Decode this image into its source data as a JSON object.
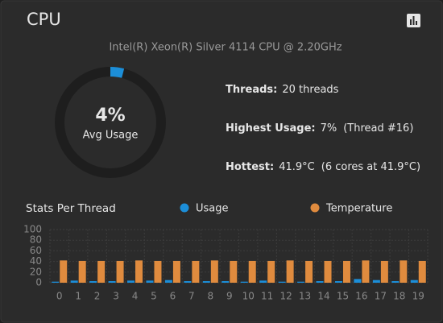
{
  "header": {
    "title": "CPU"
  },
  "model": "Intel(R) Xeon(R) Silver 4114 CPU @ 2.20GHz",
  "gauge": {
    "value": 4,
    "label": "4%",
    "caption": "Avg Usage"
  },
  "stats": {
    "threads": {
      "label": "Threads:",
      "value": "20 threads"
    },
    "highest": {
      "label": "Highest Usage:",
      "value": "7%",
      "note": "(Thread #16)"
    },
    "hottest": {
      "label": "Hottest:",
      "value": "41.9°C",
      "note": "(6 cores at 41.9°C)"
    }
  },
  "chart_data": {
    "type": "bar",
    "title": "Stats Per Thread",
    "categories": [
      "0",
      "1",
      "2",
      "3",
      "4",
      "5",
      "6",
      "7",
      "8",
      "9",
      "10",
      "11",
      "12",
      "13",
      "14",
      "15",
      "16",
      "17",
      "18",
      "19"
    ],
    "series": [
      {
        "name": "Usage",
        "color": "#1c8ed8",
        "values": [
          2,
          4,
          3,
          3,
          4,
          4,
          5,
          3,
          3,
          3,
          2,
          4,
          2,
          2,
          3,
          3,
          7,
          5,
          3,
          5
        ]
      },
      {
        "name": "Temperature",
        "color": "#e08b3e",
        "values": [
          41.9,
          41,
          41,
          41,
          41.9,
          41,
          41,
          41,
          41.9,
          41,
          41,
          41,
          41.9,
          41,
          41,
          41,
          41.9,
          41,
          41.9,
          41
        ]
      }
    ],
    "ylim": [
      0,
      100
    ],
    "yticks": [
      0,
      20,
      40,
      60,
      80,
      100
    ],
    "grid": true
  }
}
